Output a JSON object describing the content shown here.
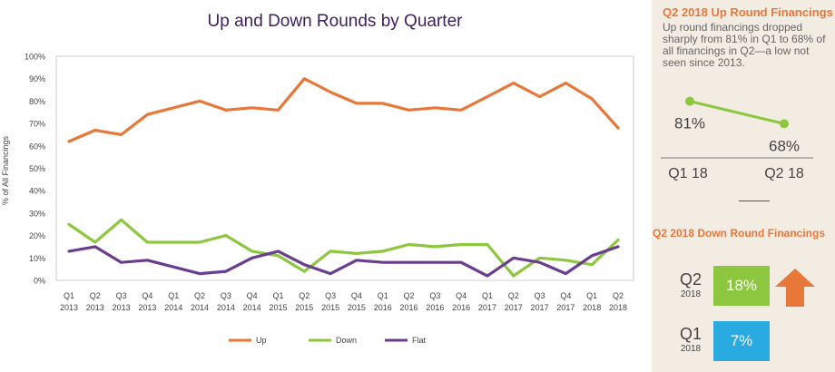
{
  "chart_data": {
    "type": "line",
    "title": "Up and Down Rounds by Quarter",
    "ylabel": "% of All Financings",
    "xlabel": "",
    "ylim": [
      0,
      100
    ],
    "yticks": [
      "0%",
      "10%",
      "20%",
      "30%",
      "40%",
      "50%",
      "60%",
      "70%",
      "80%",
      "90%",
      "100%"
    ],
    "categories": [
      {
        "q": "Q1",
        "y": "2013"
      },
      {
        "q": "Q2",
        "y": "2013"
      },
      {
        "q": "Q3",
        "y": "2013"
      },
      {
        "q": "Q4",
        "y": "2013"
      },
      {
        "q": "Q1",
        "y": "2014"
      },
      {
        "q": "Q2",
        "y": "2014"
      },
      {
        "q": "Q3",
        "y": "2014"
      },
      {
        "q": "Q4",
        "y": "2014"
      },
      {
        "q": "Q1",
        "y": "2015"
      },
      {
        "q": "Q2",
        "y": "2015"
      },
      {
        "q": "Q3",
        "y": "2015"
      },
      {
        "q": "Q4",
        "y": "2015"
      },
      {
        "q": "Q1",
        "y": "2016"
      },
      {
        "q": "Q2",
        "y": "2016"
      },
      {
        "q": "Q3",
        "y": "2016"
      },
      {
        "q": "Q4",
        "y": "2016"
      },
      {
        "q": "Q1",
        "y": "2017"
      },
      {
        "q": "Q2",
        "y": "2017"
      },
      {
        "q": "Q3",
        "y": "2017"
      },
      {
        "q": "Q4",
        "y": "2017"
      },
      {
        "q": "Q1",
        "y": "2018"
      },
      {
        "q": "Q2",
        "y": "2018"
      }
    ],
    "series": [
      {
        "name": "Up",
        "color": "#e8773a",
        "values": [
          62,
          67,
          65,
          74,
          77,
          80,
          76,
          77,
          76,
          90,
          84,
          79,
          79,
          76,
          77,
          76,
          82,
          88,
          82,
          88,
          81,
          68
        ]
      },
      {
        "name": "Down",
        "color": "#8dc63f",
        "values": [
          25,
          17,
          27,
          17,
          17,
          17,
          20,
          13,
          11,
          4,
          13,
          12,
          13,
          16,
          15,
          16,
          16,
          2,
          10,
          9,
          7,
          18
        ]
      },
      {
        "name": "Flat",
        "color": "#6a3d8f",
        "values": [
          13,
          15,
          8,
          9,
          6,
          3,
          4,
          10,
          13,
          7,
          3,
          9,
          8,
          8,
          8,
          8,
          2,
          10,
          8,
          3,
          11,
          15
        ]
      }
    ],
    "grid": false,
    "legend": "bottom-center"
  },
  "sidebar": {
    "up_title": "Q2 2018 Up Round Financings",
    "up_description": "Up round financings dropped sharply from 81% in Q1 to 68% of all financings in Q2—a low not seen since 2013.",
    "up_mini": {
      "points": [
        {
          "label": "Q1 18",
          "value": 81,
          "value_label": "81%"
        },
        {
          "label": "Q2 18",
          "value": 68,
          "value_label": "68%"
        }
      ],
      "color": "#8dc63f"
    },
    "down_title": "Q2 2018 Down Round Financings",
    "down_items": [
      {
        "q": "Q2",
        "year": "2018",
        "value": "18%",
        "color": "#8dc63f"
      },
      {
        "q": "Q1",
        "year": "2018",
        "value": "7%",
        "color": "#29aae1"
      }
    ],
    "arrow_color": "#e8773a"
  }
}
